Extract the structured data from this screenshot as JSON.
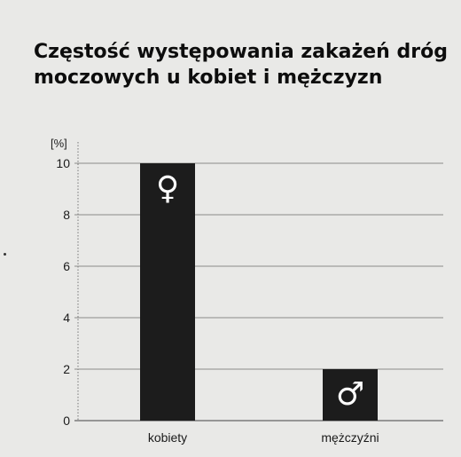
{
  "chart_data": {
    "type": "bar",
    "title_lines": [
      "Częstość występowania zakażeń dróg",
      "moczowych u kobiet i mężczyzn"
    ],
    "ylabel": "[%]",
    "categories": [
      "kobiety",
      "mężczyźni"
    ],
    "values": [
      10,
      2
    ],
    "ylim": [
      0,
      10
    ],
    "yticks": [
      0,
      2,
      4,
      6,
      8,
      10
    ],
    "bar_icons": [
      "♀",
      "♂"
    ],
    "bar_icon_names": [
      "female-symbol-icon",
      "male-symbol-icon"
    ],
    "bar_color": "#1c1c1c",
    "grid": true,
    "legend": "none"
  }
}
